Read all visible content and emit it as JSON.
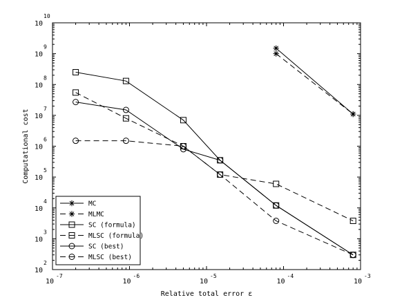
{
  "chart_data": {
    "type": "line",
    "xlabel": "Relative total error ε",
    "ylabel": "Computational cost",
    "xscale": "log",
    "yscale": "log",
    "xlim": [
      1e-07,
      0.001
    ],
    "ylim": [
      100.0,
      10000000000.0
    ],
    "x_ticks": [
      {
        "base": "10",
        "exp": "-7"
      },
      {
        "base": "10",
        "exp": "-6"
      },
      {
        "base": "10",
        "exp": "-5"
      },
      {
        "base": "10",
        "exp": "-4"
      },
      {
        "base": "10",
        "exp": "-3"
      }
    ],
    "y_ticks": [
      {
        "base": "10",
        "exp": "2"
      },
      {
        "base": "10",
        "exp": "3"
      },
      {
        "base": "10",
        "exp": "4"
      },
      {
        "base": "10",
        "exp": "5"
      },
      {
        "base": "10",
        "exp": "6"
      },
      {
        "base": "10",
        "exp": "7"
      },
      {
        "base": "10",
        "exp": "8"
      },
      {
        "base": "10",
        "exp": "9"
      },
      {
        "base": "10",
        "exp": "10"
      }
    ],
    "grid": false,
    "legend_position": "bottom-left",
    "series": [
      {
        "name": "MC",
        "marker": "star",
        "dash": "solid",
        "x": [
          8e-05,
          0.0008
        ],
        "y": [
          1500000000.0,
          11000000.0
        ]
      },
      {
        "name": "MLMC",
        "marker": "star",
        "dash": "dashed",
        "x": [
          8e-05,
          0.0008
        ],
        "y": [
          1000000000.0,
          11000000.0
        ]
      },
      {
        "name": "SC (formula)",
        "marker": "square",
        "dash": "solid",
        "x": [
          2e-07,
          9e-07,
          5e-06,
          1.5e-05,
          8e-05,
          0.0008
        ],
        "y": [
          250000000.0,
          130000000.0,
          7000000.0,
          350000.0,
          12000.0,
          300.0
        ]
      },
      {
        "name": "MLSC (formula)",
        "marker": "square",
        "dash": "dashed",
        "x": [
          2e-07,
          9e-07,
          5e-06,
          1.5e-05,
          8e-05,
          0.0008
        ],
        "y": [
          55000000.0,
          8000000.0,
          1000000.0,
          120000.0,
          60000.0,
          3800.0
        ]
      },
      {
        "name": "SC (best)",
        "marker": "circle",
        "dash": "solid",
        "x": [
          2e-07,
          9e-07,
          5e-06,
          1.5e-05,
          8e-05,
          0.0008
        ],
        "y": [
          27000000.0,
          15000000.0,
          800000.0,
          350000.0,
          12000.0,
          300.0
        ]
      },
      {
        "name": "MLSC (best)",
        "marker": "circle",
        "dash": "dashed",
        "x": [
          2e-07,
          9e-07,
          5e-06,
          1.5e-05,
          8e-05,
          0.0008
        ],
        "y": [
          1500000.0,
          1500000.0,
          1000000.0,
          120000.0,
          3800.0,
          300.0
        ]
      }
    ]
  }
}
